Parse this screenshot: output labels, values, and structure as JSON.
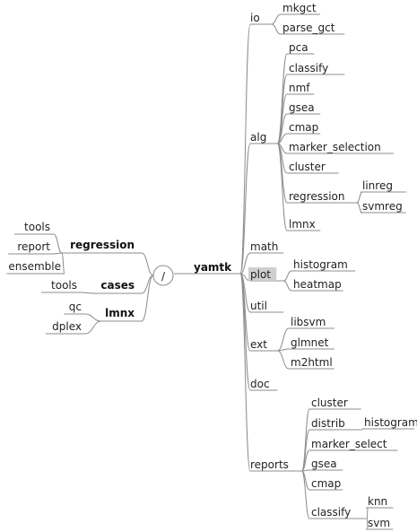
{
  "mindmap": {
    "root": {
      "label": "/"
    },
    "right": {
      "label": "yamtk",
      "children": [
        {
          "label": "io",
          "children": [
            {
              "label": "mkgct"
            },
            {
              "label": "parse_gct"
            }
          ]
        },
        {
          "label": "alg",
          "children": [
            {
              "label": "pca"
            },
            {
              "label": "classify"
            },
            {
              "label": "nmf"
            },
            {
              "label": "gsea"
            },
            {
              "label": "cmap"
            },
            {
              "label": "marker_selection"
            },
            {
              "label": "cluster"
            },
            {
              "label": "regression",
              "children": [
                {
                  "label": "linreg"
                },
                {
                  "label": "svmreg"
                }
              ]
            },
            {
              "label": "lmnx"
            }
          ]
        },
        {
          "label": "math"
        },
        {
          "label": "plot",
          "highlighted": true,
          "children": [
            {
              "label": "histogram"
            },
            {
              "label": "heatmap"
            }
          ]
        },
        {
          "label": "util"
        },
        {
          "label": "ext",
          "children": [
            {
              "label": "libsvm"
            },
            {
              "label": "glmnet"
            },
            {
              "label": "m2html"
            }
          ]
        },
        {
          "label": "doc"
        },
        {
          "label": "reports",
          "children": [
            {
              "label": "cluster"
            },
            {
              "label": "distrib",
              "children": [
                {
                  "label": "histogram"
                }
              ]
            },
            {
              "label": "marker_select"
            },
            {
              "label": "gsea"
            },
            {
              "label": "cmap"
            },
            {
              "label": "classify",
              "children": [
                {
                  "label": "knn"
                },
                {
                  "label": "svm"
                }
              ]
            }
          ]
        }
      ]
    },
    "left": [
      {
        "label": "regression",
        "children": [
          {
            "label": "tools"
          },
          {
            "label": "report"
          },
          {
            "label": "ensemble"
          }
        ]
      },
      {
        "label": "cases",
        "children": [
          {
            "label": "tools"
          }
        ]
      },
      {
        "label": "lmnx",
        "children": [
          {
            "label": "qc"
          },
          {
            "label": "dplex"
          }
        ]
      }
    ]
  }
}
